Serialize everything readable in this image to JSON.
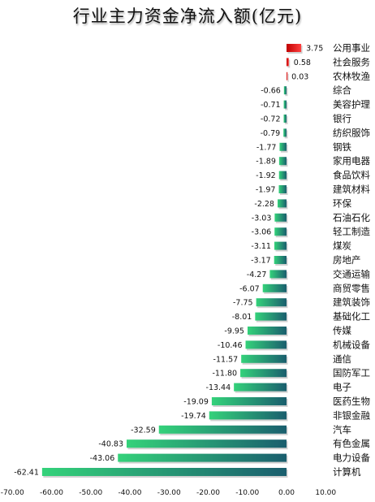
{
  "chart_data": {
    "type": "bar",
    "orientation": "horizontal",
    "title": "行业主力资金净流入额(亿元)",
    "xlabel": "",
    "ylabel": "",
    "xlim": [
      -70,
      10
    ],
    "xticks": [
      "-70.00",
      "-60.00",
      "-50.00",
      "-40.00",
      "-30.00",
      "-20.00",
      "-10.00",
      "0.00",
      "10.00"
    ],
    "xtick_values": [
      -70,
      -60,
      -50,
      -40,
      -30,
      -20,
      -10,
      0,
      10
    ],
    "grid": false,
    "legend": "none",
    "categories": [
      "公用事业",
      "社会服务",
      "农林牧渔",
      "综合",
      "美容护理",
      "银行",
      "纺织服饰",
      "钢铁",
      "家用电器",
      "食品饮料",
      "建筑材料",
      "环保",
      "石油石化",
      "轻工制造",
      "煤炭",
      "房地产",
      "交通运输",
      "商贸零售",
      "建筑装饰",
      "基础化工",
      "传媒",
      "机械设备",
      "通信",
      "国防军工",
      "电子",
      "医药生物",
      "非银金融",
      "汽车",
      "有色金属",
      "电力设备",
      "计算机"
    ],
    "values": [
      3.75,
      0.58,
      0.03,
      -0.66,
      -0.71,
      -0.72,
      -0.79,
      -1.77,
      -1.89,
      -1.92,
      -1.97,
      -2.28,
      -3.03,
      -3.06,
      -3.11,
      -3.17,
      -4.27,
      -6.07,
      -7.75,
      -8.01,
      -9.95,
      -10.46,
      -11.57,
      -11.8,
      -13.44,
      -19.09,
      -19.74,
      -32.59,
      -40.83,
      -43.06,
      -62.41
    ],
    "value_labels": [
      "3.75",
      "0.58",
      "0.03",
      "-0.66",
      "-0.71",
      "-0.72",
      "-0.79",
      "-1.77",
      "-1.89",
      "-1.92",
      "-1.97",
      "-2.28",
      "-3.03",
      "-3.06",
      "-3.11",
      "-3.17",
      "-4.27",
      "-6.07",
      "-7.75",
      "-8.01",
      "-9.95",
      "-10.46",
      "-11.57",
      "-11.80",
      "-13.44",
      "-19.09",
      "-19.74",
      "-32.59",
      "-40.83",
      "-43.06",
      "-62.41"
    ],
    "colors": {
      "positive_dark": "#c00000",
      "positive_light": "#ff4040",
      "negative_dark": "#1a5e6e",
      "negative_light": "#34d27a"
    }
  }
}
